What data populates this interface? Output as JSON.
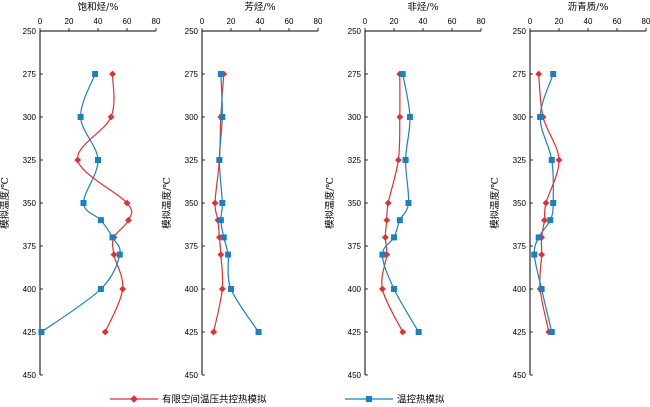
{
  "chart_data": {
    "type": "line",
    "y_title": "模拟温度/℃",
    "y_ticks": [
      250,
      275,
      300,
      325,
      350,
      375,
      400,
      425,
      450
    ],
    "ylim": [
      250,
      450
    ],
    "x_ticks": [
      0,
      20,
      40,
      60,
      80
    ],
    "xlim": [
      0,
      80
    ],
    "colors": {
      "red": "#e03030",
      "blue": "#1c7fc0"
    },
    "legend": {
      "red_label": "有限空间温压共控热模拟",
      "blue_label": "温控热模拟"
    },
    "panels": [
      {
        "title": "饱和烃/%",
        "series": [
          {
            "name": "有限空间温压共控热模拟",
            "color": "red",
            "marker": "diamond",
            "x": [
              50,
              49,
              26,
              60,
              61,
              51,
              51,
              57,
              45
            ],
            "y": [
              275,
              300,
              325,
              350,
              360,
              370,
              380,
              400,
              425
            ]
          },
          {
            "name": "温控热模拟",
            "color": "blue",
            "marker": "square",
            "x": [
              38,
              28,
              40,
              30,
              42,
              50,
              55,
              42,
              1
            ],
            "y": [
              275,
              300,
              325,
              350,
              360,
              370,
              380,
              400,
              425
            ]
          }
        ]
      },
      {
        "title": "芳烃/%",
        "series": [
          {
            "name": "有限空间温压共控热模拟",
            "color": "red",
            "marker": "diamond",
            "x": [
              15,
              13,
              12,
              9,
              11,
              12,
              13,
              14,
              8
            ],
            "y": [
              275,
              300,
              325,
              350,
              360,
              370,
              380,
              400,
              425
            ]
          },
          {
            "name": "温控热模拟",
            "color": "blue",
            "marker": "square",
            "x": [
              13,
              14,
              12,
              14,
              13,
              15,
              18,
              20,
              39
            ],
            "y": [
              275,
              300,
              325,
              350,
              360,
              370,
              380,
              400,
              425
            ]
          }
        ]
      },
      {
        "title": "非烃/%",
        "series": [
          {
            "name": "有限空间温压共控热模拟",
            "color": "red",
            "marker": "diamond",
            "x": [
              24,
              24,
              23,
              16,
              15,
              14,
              15,
              12,
              26
            ],
            "y": [
              275,
              300,
              325,
              350,
              360,
              370,
              380,
              400,
              425
            ]
          },
          {
            "name": "温控热模拟",
            "color": "blue",
            "marker": "square",
            "x": [
              26,
              31,
              28,
              30,
              24,
              20,
              12,
              20,
              37
            ],
            "y": [
              275,
              300,
              325,
              350,
              360,
              370,
              380,
              400,
              425
            ]
          }
        ]
      },
      {
        "title": "沥青质/%",
        "series": [
          {
            "name": "有限空间温压共控热模拟",
            "color": "red",
            "marker": "diamond",
            "x": [
              6,
              9,
              20,
              11,
              10,
              8,
              8,
              7,
              13
            ],
            "y": [
              275,
              300,
              325,
              350,
              360,
              370,
              380,
              400,
              425
            ]
          },
          {
            "name": "温控热模拟",
            "color": "blue",
            "marker": "square",
            "x": [
              16,
              7,
              15,
              16,
              14,
              6,
              3,
              8,
              15
            ],
            "y": [
              275,
              300,
              325,
              350,
              360,
              370,
              380,
              400,
              425
            ]
          }
        ]
      }
    ]
  }
}
